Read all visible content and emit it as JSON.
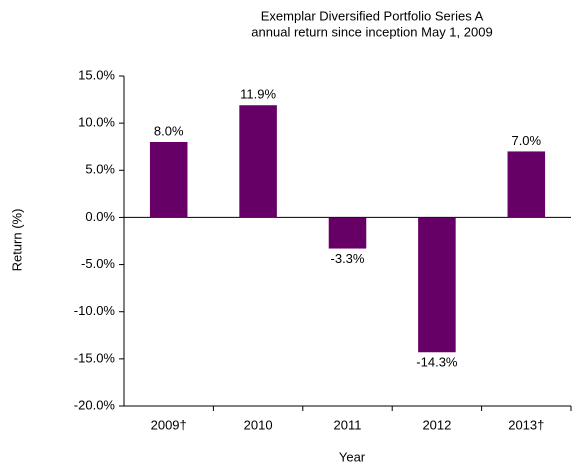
{
  "chart_data": {
    "type": "bar",
    "title": [
      "Exemplar Diversified Portfolio Series A",
      "annual return since inception May 1, 2009"
    ],
    "x_label": "Year",
    "y_label": "Return (%)",
    "categories": [
      "2009†",
      "2010",
      "2011",
      "2012",
      "2013†"
    ],
    "values": [
      8.0,
      11.9,
      -3.3,
      -14.3,
      7.0
    ],
    "value_labels": [
      "8.0%",
      "11.9%",
      "-3.3%",
      "-14.3%",
      "7.0%"
    ],
    "color": "#660066",
    "ylim": [
      -20,
      15
    ],
    "yticks": [
      {
        "value": -20,
        "label": "-20.0%"
      },
      {
        "value": -15,
        "label": "-15.0%"
      },
      {
        "value": -10,
        "label": "-10.0%"
      },
      {
        "value": -5,
        "label": "-5.0%"
      },
      {
        "value": 0,
        "label": "0.0%"
      },
      {
        "value": 5,
        "label": "5.0%"
      },
      {
        "value": 10,
        "label": "10.0%"
      },
      {
        "value": 15,
        "label": "15.0%"
      }
    ],
    "grid": false
  }
}
